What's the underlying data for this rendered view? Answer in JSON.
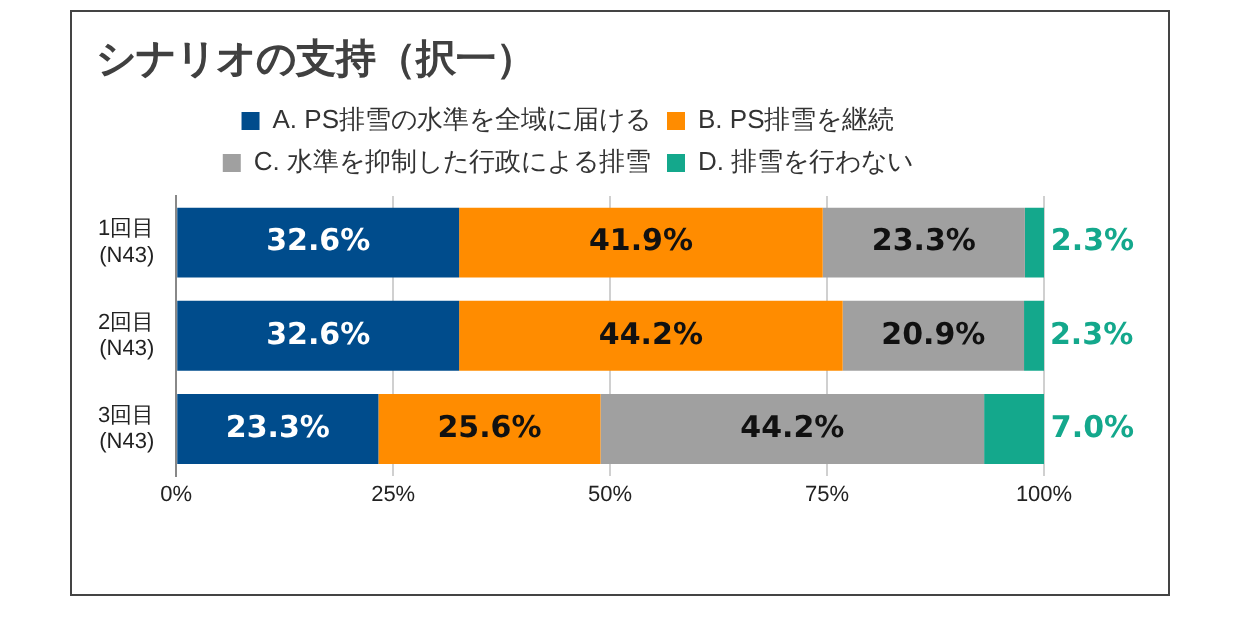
{
  "chart_data": {
    "type": "bar",
    "orientation": "horizontal",
    "stacked": true,
    "title": "シナリオの支持（択一）",
    "categories": [
      "1回目\n(N43)",
      "2回目\n(N43)",
      "3回目\n(N43)"
    ],
    "series": [
      {
        "name": "A. PS排雪の水準を全域に届ける",
        "color": "#004c8c",
        "values": [
          32.6,
          32.6,
          23.3
        ],
        "value_labels": [
          "32.6%",
          "32.6%",
          "23.3%"
        ]
      },
      {
        "name": "B. PS排雪を継続",
        "color": "#ff8c00",
        "values": [
          41.9,
          44.2,
          25.6
        ],
        "value_labels": [
          "41.9%",
          "44.2%",
          "25.6%"
        ]
      },
      {
        "name": "C. 水準を抑制した行政による排雪",
        "color": "#a0a0a0",
        "values": [
          23.3,
          20.9,
          44.2
        ],
        "value_labels": [
          "23.3%",
          "20.9%",
          "44.2%"
        ]
      },
      {
        "name": "D. 排雪を行わない",
        "color": "#14a88c",
        "values": [
          2.3,
          2.3,
          7.0
        ],
        "value_labels": [
          "2.3%",
          "2.3%",
          "7.0%"
        ]
      }
    ],
    "xlim": [
      0,
      100
    ],
    "xticks": [
      {
        "value": 0,
        "label": "0%"
      },
      {
        "value": 25,
        "label": "25%"
      },
      {
        "value": 50,
        "label": "50%"
      },
      {
        "value": 75,
        "label": "75%"
      },
      {
        "value": 100,
        "label": "100%"
      }
    ],
    "grid": "x",
    "legend": "top"
  }
}
